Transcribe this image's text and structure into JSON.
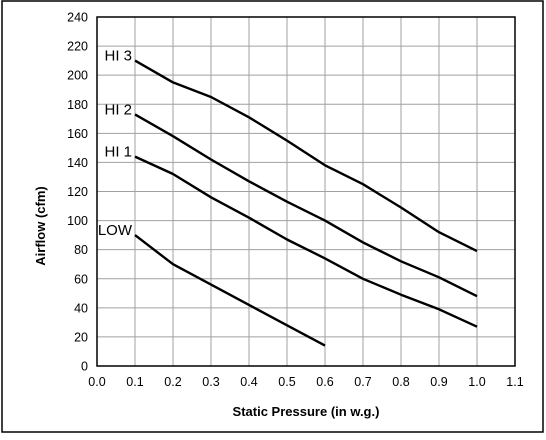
{
  "chart_data": {
    "type": "line",
    "title": "",
    "xlabel": "Static Pressure   (in w.g.)",
    "ylabel": "Airflow   (cfm)",
    "xlim": [
      0.0,
      1.1
    ],
    "ylim": [
      0,
      240
    ],
    "x_ticks": [
      "0.0",
      "0.1",
      "0.2",
      "0.3",
      "0.4",
      "0.5",
      "0.6",
      "0.7",
      "0.8",
      "0.9",
      "1.0",
      "1.1"
    ],
    "y_ticks": [
      "0",
      "20",
      "40",
      "60",
      "80",
      "100",
      "120",
      "140",
      "160",
      "180",
      "200",
      "220",
      "240"
    ],
    "grid": true,
    "legend": "none",
    "series": [
      {
        "name": "HI 3",
        "x": [
          0.1,
          0.2,
          0.3,
          0.4,
          0.5,
          0.6,
          0.7,
          0.8,
          0.9,
          1.0
        ],
        "y": [
          210,
          195,
          185,
          171,
          155,
          138,
          125,
          109,
          92,
          79
        ]
      },
      {
        "name": "HI 2",
        "x": [
          0.1,
          0.2,
          0.3,
          0.4,
          0.5,
          0.6,
          0.7,
          0.8,
          0.9,
          1.0
        ],
        "y": [
          173,
          158,
          142,
          127,
          113,
          100,
          85,
          72,
          61,
          48
        ]
      },
      {
        "name": "HI 1",
        "x": [
          0.1,
          0.2,
          0.3,
          0.4,
          0.5,
          0.6,
          0.7,
          0.8,
          0.9,
          1.0
        ],
        "y": [
          144,
          132,
          116,
          102,
          87,
          74,
          60,
          49,
          39,
          27
        ]
      },
      {
        "name": "LOW",
        "x": [
          0.1,
          0.2,
          0.3,
          0.4,
          0.5,
          0.6
        ],
        "y": [
          90,
          70,
          56,
          42,
          28,
          14
        ]
      }
    ],
    "colors": {
      "line": "#000000",
      "grid": "#a0a0a0",
      "frame": "#000000"
    }
  }
}
